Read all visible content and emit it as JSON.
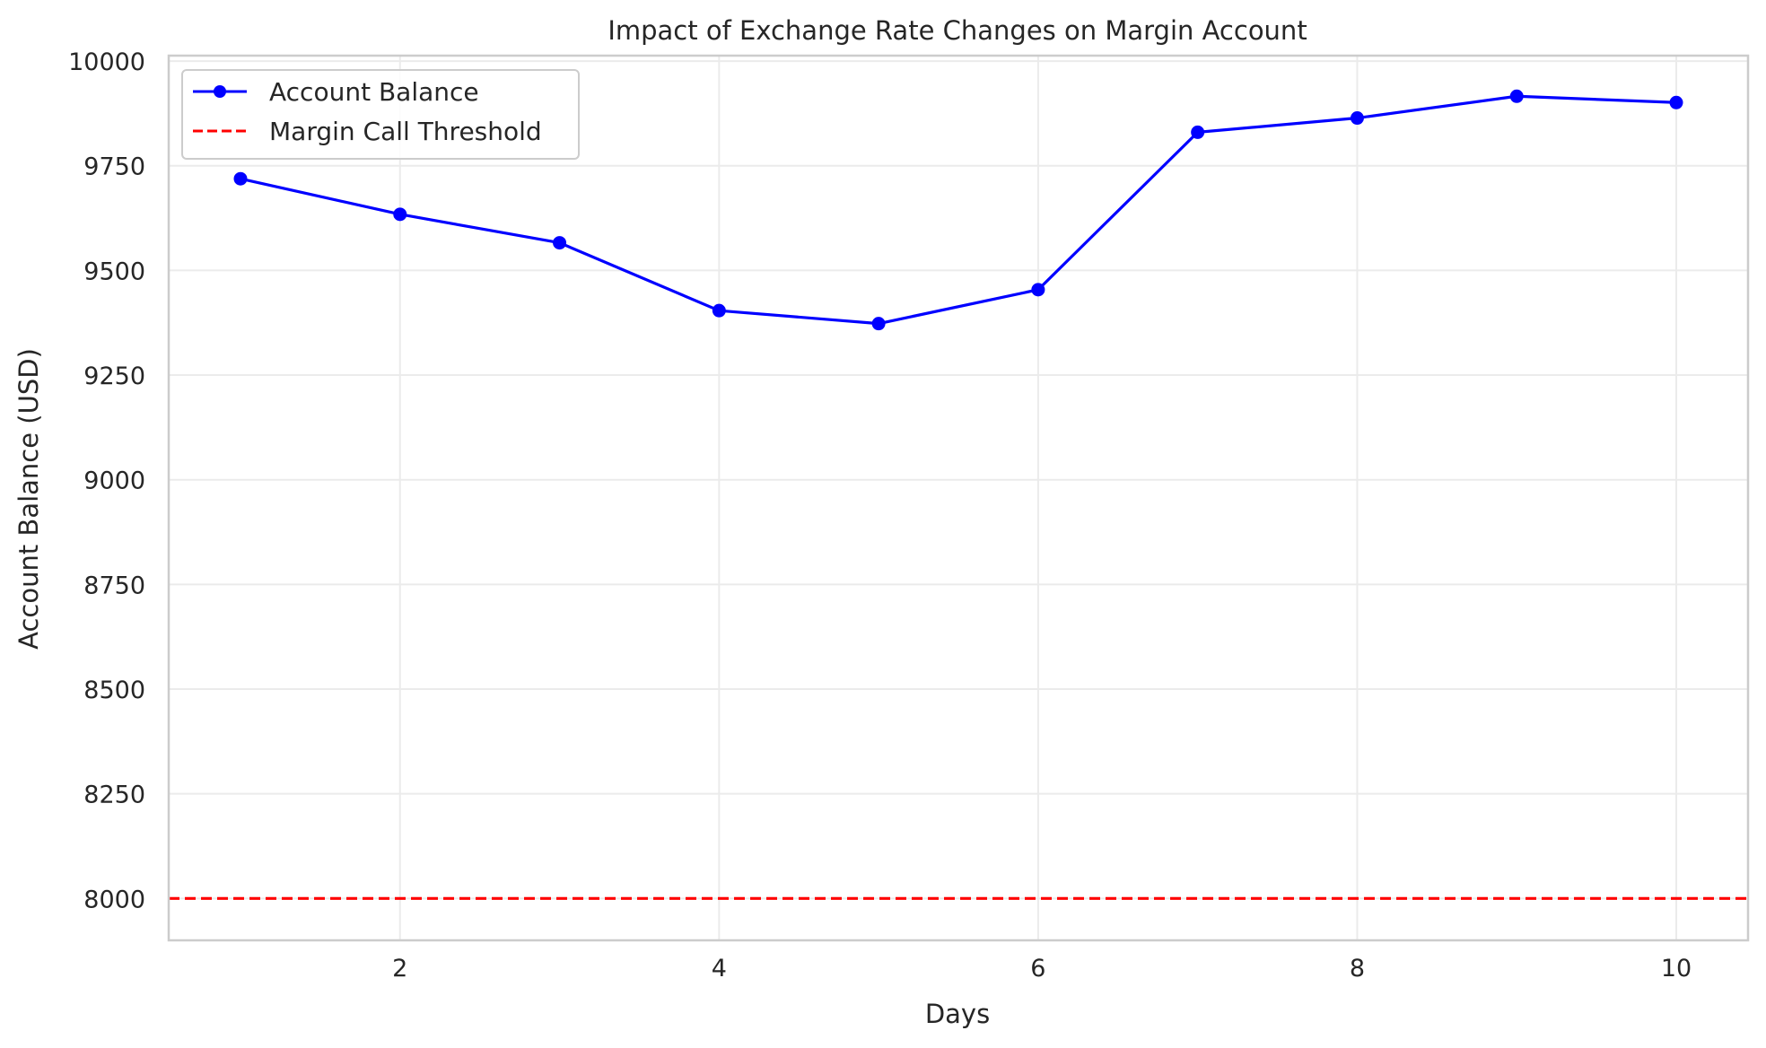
{
  "chart_data": {
    "type": "line",
    "title": "Impact of Exchange Rate Changes on Margin Account",
    "xlabel": "Days",
    "ylabel": "Account Balance (USD)",
    "xlim": [
      0.55,
      10.45
    ],
    "ylim": [
      7900,
      10013
    ],
    "x_ticks": [
      2,
      4,
      6,
      8,
      10
    ],
    "y_ticks": [
      8000,
      8250,
      8500,
      8750,
      9000,
      9250,
      9500,
      9750,
      10000
    ],
    "grid": true,
    "legend_position": "top-left",
    "series": [
      {
        "name": "Account Balance",
        "color": "#0000ff",
        "style": "solid-with-circle-markers",
        "x": [
          1,
          2,
          3,
          4,
          5,
          6,
          7,
          8,
          9,
          10
        ],
        "values": [
          9719,
          9634,
          9566,
          9404,
          9373,
          9454,
          9830,
          9864,
          9916,
          9901
        ]
      },
      {
        "name": "Margin Call Threshold",
        "color": "#ff0000",
        "style": "dashed-horizontal-line",
        "y": 8000
      }
    ]
  }
}
